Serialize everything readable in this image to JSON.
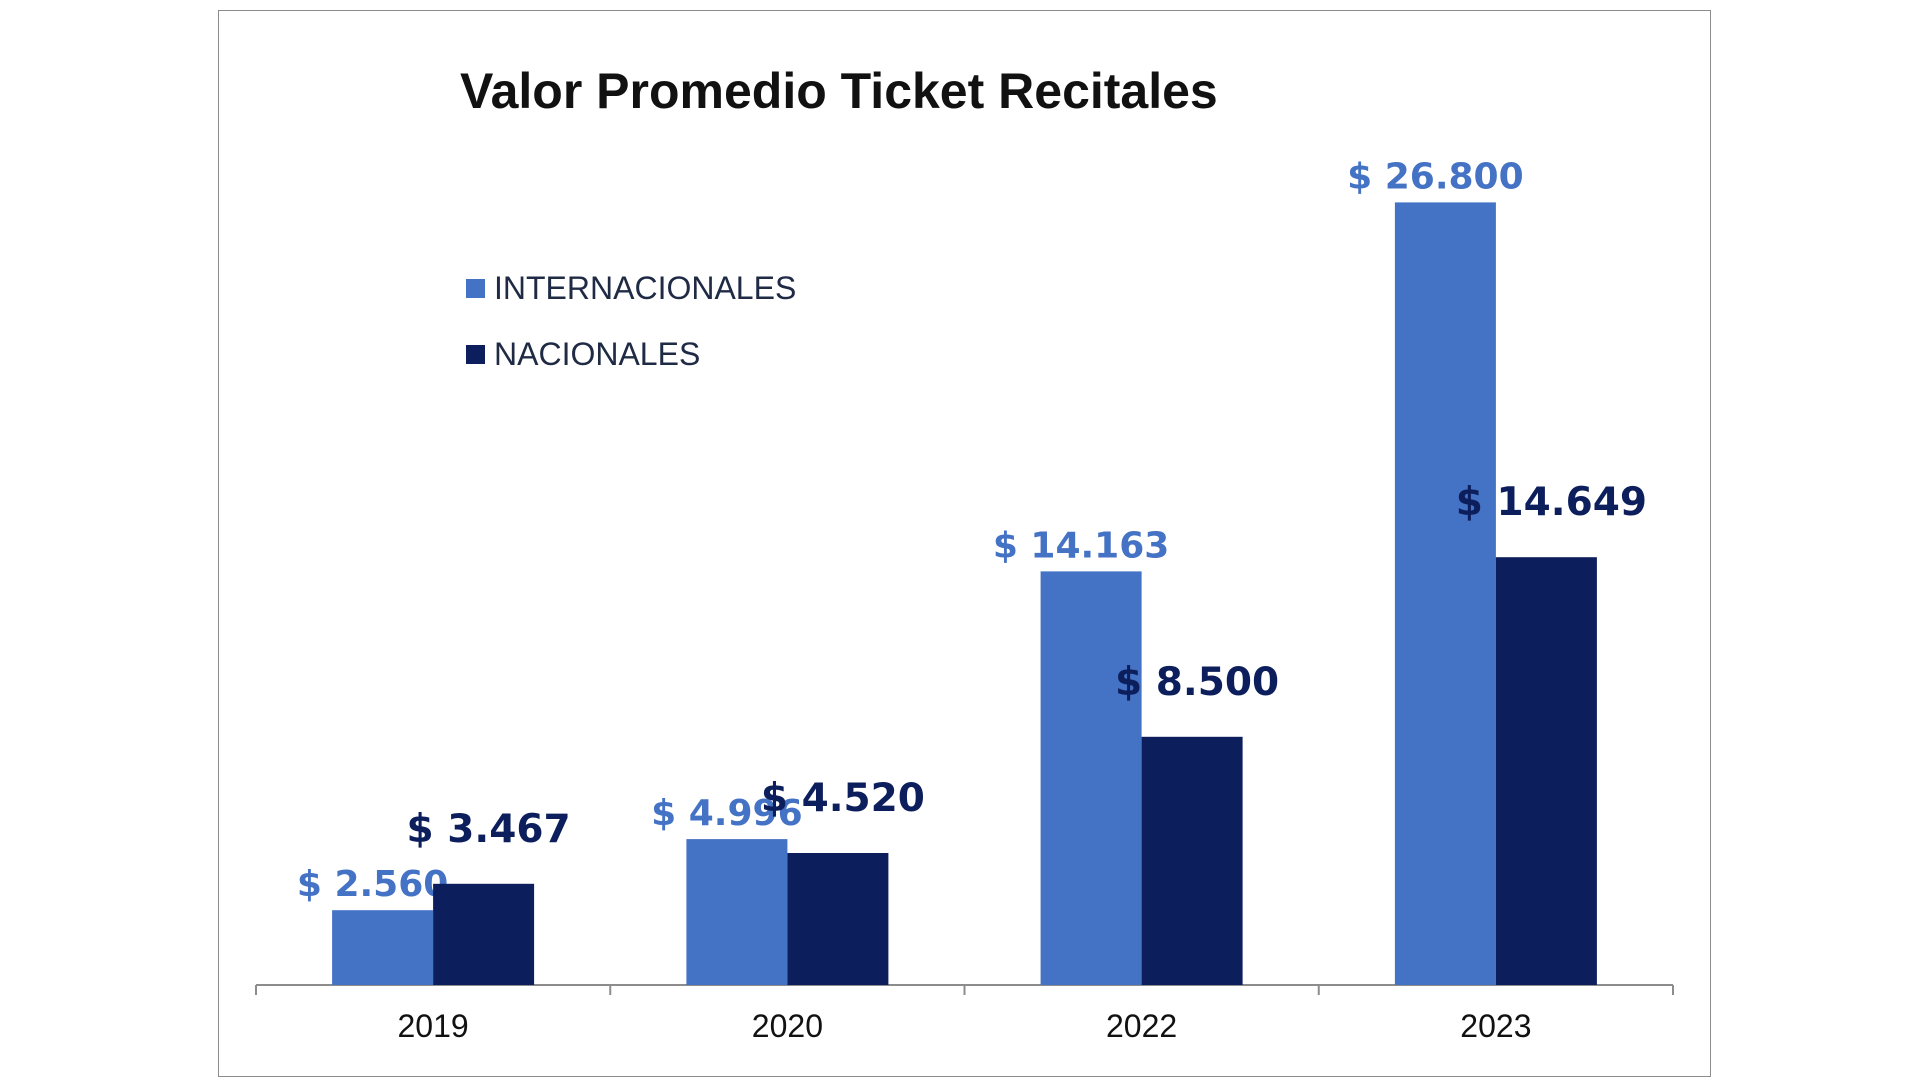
{
  "chart_data": {
    "type": "bar",
    "title": "Valor Promedio Ticket Recitales",
    "xlabel": "",
    "ylabel": "",
    "categories": [
      "2019",
      "2020",
      "2022",
      "2023"
    ],
    "series": [
      {
        "name": "INTERNACIONALES",
        "color": "#4472c4",
        "values": [
          2560,
          4996,
          14163,
          26800
        ],
        "labels": [
          "$ 2.560",
          "$ 4.996",
          "$ 14.163",
          "$ 26.800"
        ]
      },
      {
        "name": "NACIONALES",
        "color": "#0c1f5c",
        "values": [
          3467,
          4520,
          8500,
          14649
        ],
        "labels": [
          "$ 3.467",
          "$ 4.520",
          "$ 8.500",
          "$ 14.649"
        ]
      }
    ],
    "ylim": [
      0,
      28000
    ],
    "grid": false,
    "legend_position": "top-left"
  }
}
